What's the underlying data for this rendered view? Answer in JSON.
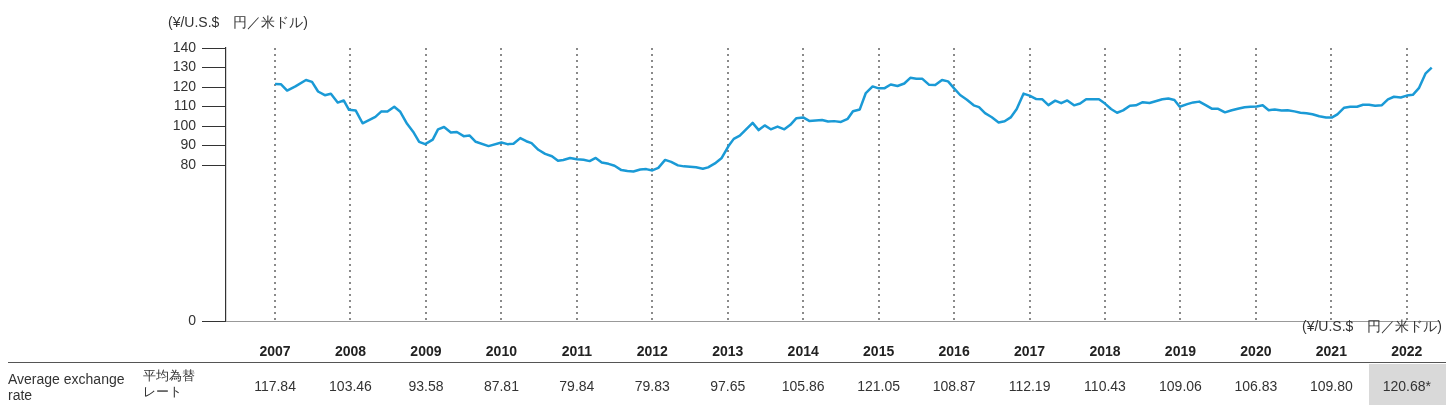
{
  "chart_data": {
    "type": "line",
    "ylabel": "(¥/U.S.$　円／米ドル)",
    "color": "#1a9ad6",
    "x": [
      2007.0,
      2007.08,
      2007.16,
      2007.27,
      2007.41,
      2007.49,
      2007.57,
      2007.66,
      2007.74,
      2007.83,
      2007.91,
      2007.98,
      2008.07,
      2008.16,
      2008.33,
      2008.41,
      2008.49,
      2008.58,
      2008.66,
      2008.75,
      2008.83,
      2008.91,
      2008.99,
      2009.09,
      2009.16,
      2009.24,
      2009.33,
      2009.41,
      2009.5,
      2009.58,
      2009.66,
      2009.83,
      2010.0,
      2010.08,
      2010.16,
      2010.25,
      2010.33,
      2010.4,
      2010.49,
      2010.58,
      2010.67,
      2010.75,
      2010.82,
      2010.91,
      2011.0,
      2011.09,
      2011.17,
      2011.25,
      2011.33,
      2011.42,
      2011.5,
      2011.59,
      2011.67,
      2011.75,
      2011.84,
      2011.92,
      2012.0,
      2012.08,
      2012.17,
      2012.25,
      2012.34,
      2012.42,
      2012.58,
      2012.67,
      2012.74,
      2012.83,
      2012.92,
      2013.01,
      2013.08,
      2013.16,
      2013.24,
      2013.33,
      2013.41,
      2013.49,
      2013.57,
      2013.66,
      2013.75,
      2013.83,
      2013.91,
      2014.0,
      2014.08,
      2014.25,
      2014.33,
      2014.41,
      2014.5,
      2014.59,
      2014.66,
      2014.75,
      2014.83,
      2014.92,
      2015.0,
      2015.08,
      2015.16,
      2015.25,
      2015.34,
      2015.42,
      2015.5,
      2015.58,
      2015.67,
      2015.75,
      2015.84,
      2015.92,
      2016.0,
      2016.08,
      2016.17,
      2016.26,
      2016.33,
      2016.41,
      2016.5,
      2016.59,
      2016.67,
      2016.75,
      2016.83,
      2016.92,
      2017.0,
      2017.09,
      2017.17,
      2017.25,
      2017.34,
      2017.42,
      2017.5,
      2017.59,
      2017.67,
      2017.75,
      2017.92,
      2018.0,
      2018.08,
      2018.16,
      2018.24,
      2018.33,
      2018.41,
      2018.5,
      2018.59,
      2018.67,
      2018.76,
      2018.84,
      2018.92,
      2018.99,
      2019.09,
      2019.17,
      2019.25,
      2019.34,
      2019.42,
      2019.5,
      2019.59,
      2019.68,
      2019.76,
      2019.85,
      2019.93,
      2020.01,
      2020.09,
      2020.17,
      2020.25,
      2020.34,
      2020.42,
      2020.51,
      2020.59,
      2020.67,
      2020.75,
      2020.84,
      2020.93,
      2021.01,
      2021.08,
      2021.17,
      2021.25,
      2021.34,
      2021.42,
      2021.5,
      2021.58,
      2021.67,
      2021.75,
      2021.83,
      2021.92,
      2022.0,
      2022.08,
      2022.16,
      2022.25,
      2022.33
    ],
    "values": [
      121.6,
      121.4,
      118.2,
      120.3,
      123.6,
      122.6,
      117.7,
      115.8,
      116.5,
      112.0,
      113.1,
      108.3,
      107.9,
      101.4,
      104.7,
      107.5,
      107.4,
      109.9,
      107.3,
      101.1,
      97.1,
      91.9,
      90.7,
      93.0,
      98.3,
      99.5,
      96.7,
      96.9,
      94.8,
      95.1,
      91.9,
      89.7,
      91.5,
      90.7,
      90.9,
      93.8,
      92.2,
      91.2,
      87.8,
      85.7,
      84.5,
      82.2,
      82.6,
      83.6,
      82.9,
      82.7,
      82.0,
      83.6,
      81.3,
      80.6,
      79.6,
      77.4,
      76.9,
      76.7,
      77.7,
      77.9,
      77.2,
      78.5,
      82.6,
      81.6,
      79.8,
      79.3,
      78.8,
      78.1,
      78.8,
      80.8,
      83.6,
      89.7,
      93.4,
      95.1,
      98.2,
      101.6,
      97.9,
      100.3,
      98.3,
      99.7,
      98.3,
      100.6,
      104.0,
      104.4,
      102.6,
      103.1,
      102.3,
      102.5,
      102.1,
      103.7,
      107.6,
      108.5,
      116.9,
      120.3,
      119.3,
      119.4,
      121.3,
      120.5,
      121.8,
      124.7,
      124.2,
      124.2,
      121.1,
      121.0,
      123.6,
      122.9,
      119.3,
      115.9,
      113.5,
      110.6,
      109.7,
      106.6,
      104.5,
      101.8,
      102.4,
      104.4,
      108.7,
      116.6,
      115.6,
      113.8,
      113.7,
      110.7,
      113.0,
      111.7,
      113.1,
      110.6,
      111.5,
      113.7,
      113.7,
      111.5,
      108.7,
      106.8,
      108.0,
      110.4,
      110.6,
      112.2,
      111.8,
      112.7,
      113.7,
      114.1,
      113.3,
      109.9,
      111.2,
      112.1,
      112.5,
      110.6,
      108.8,
      108.8,
      107.0,
      108.1,
      108.8,
      109.6,
      109.9,
      110.0,
      110.6,
      108.1,
      108.5,
      108.0,
      108.1,
      107.5,
      106.8,
      106.5,
      106.0,
      105.0,
      104.4,
      104.4,
      106.0,
      109.4,
      109.9,
      109.9,
      110.9,
      110.9,
      110.4,
      110.7,
      113.7,
      115.0,
      114.6,
      115.6,
      116.0,
      119.4,
      127.0,
      129.9
    ],
    "xlim": [
      2006.35,
      2022.44
    ],
    "xticks": [
      2007,
      2008,
      2009,
      2010,
      2011,
      2012,
      2013,
      2014,
      2015,
      2016,
      2017,
      2018,
      2019,
      2020,
      2021,
      2022
    ],
    "ylim": [
      0,
      140
    ],
    "yticks": [
      0,
      80,
      90,
      100,
      110,
      120,
      130,
      140
    ],
    "grid": "x",
    "annotations": [
      "(¥/U.S.$　円／米ドル)",
      "Average exchange rate",
      "平均為替レート",
      "117.84",
      "103.46",
      "93.58",
      "87.81",
      "79.84",
      "79.83",
      "97.65",
      "105.86",
      "121.05",
      "108.87",
      "112.19",
      "110.43",
      "109.06",
      "106.83",
      "109.80",
      "120.68*"
    ]
  }
}
